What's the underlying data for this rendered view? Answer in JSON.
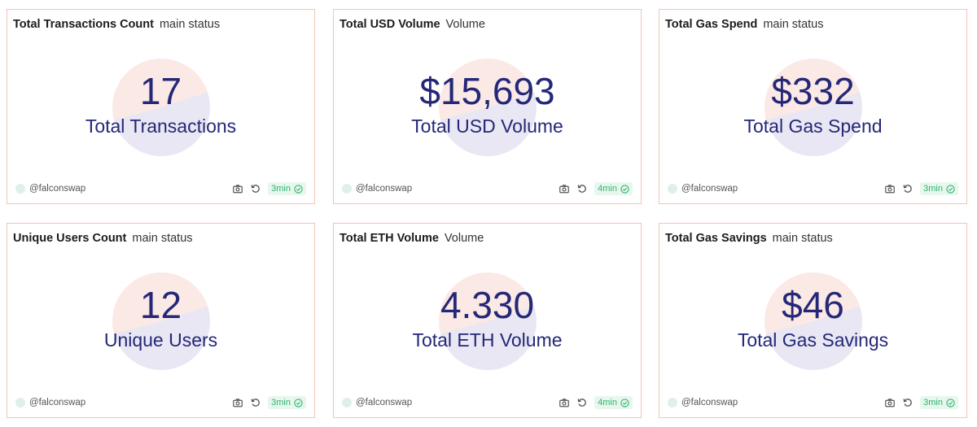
{
  "cards": [
    {
      "title": "Total Transactions Count",
      "subtitle": "main status",
      "value": "17",
      "label": "Total Transactions",
      "author": "@falconswap",
      "freshness": "3min"
    },
    {
      "title": "Total USD Volume",
      "subtitle": "Volume",
      "value": "$15,693",
      "label": "Total USD Volume",
      "author": "@falconswap",
      "freshness": "4min"
    },
    {
      "title": "Total Gas Spend",
      "subtitle": "main status",
      "value": "$332",
      "label": "Total Gas Spend",
      "author": "@falconswap",
      "freshness": "3min"
    },
    {
      "title": "Unique Users Count",
      "subtitle": "main status",
      "value": "12",
      "label": "Unique Users",
      "author": "@falconswap",
      "freshness": "3min"
    },
    {
      "title": "Total ETH Volume",
      "subtitle": "Volume",
      "value": "4.330",
      "label": "Total ETH Volume",
      "author": "@falconswap",
      "freshness": "4min"
    },
    {
      "title": "Total Gas Savings",
      "subtitle": "main status",
      "value": "$46",
      "label": "Total Gas Savings",
      "author": "@falconswap",
      "freshness": "3min"
    }
  ],
  "icons": {
    "screenshot": "camera-icon",
    "refresh": "refresh-icon",
    "fresh_status": "check-circle-icon"
  },
  "colors": {
    "card_border": "#f3c4b5",
    "value_text": "#252778",
    "pie_light": "#fbe9e5",
    "pie_lavender": "#e9e7f3",
    "fresh_badge_bg": "#e8f7ee",
    "fresh_badge_text": "#2fb46e"
  }
}
